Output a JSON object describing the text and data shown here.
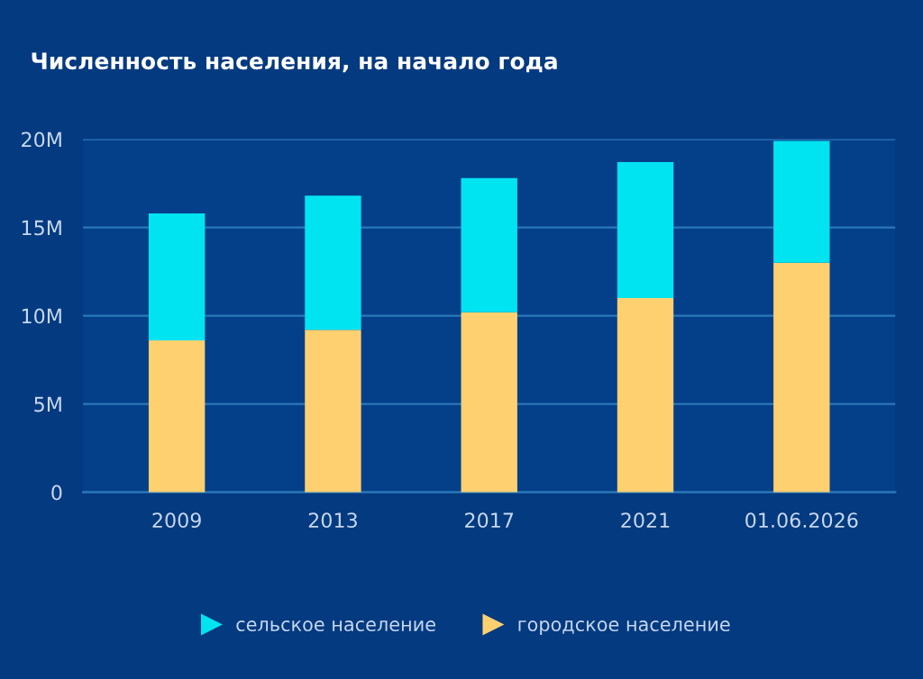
{
  "chart_data": {
    "type": "bar",
    "title": "Численность населения, на начало года",
    "categories": [
      "2009",
      "2013",
      "2017",
      "2021",
      "01.06.2026"
    ],
    "stacked": true,
    "series": [
      {
        "name": "городское население",
        "color": "#ffd070",
        "values": [
          8.6,
          9.2,
          10.2,
          11.0,
          13.0
        ]
      },
      {
        "name": "сельское население",
        "color": "#00e4f2",
        "values": [
          7.2,
          7.6,
          7.6,
          7.7,
          6.9
        ]
      }
    ],
    "ylim": [
      0,
      20
    ],
    "yticks": [
      0,
      {
        "value": 5,
        "label": "5M"
      },
      {
        "value": 10,
        "label": "10M"
      },
      {
        "value": 15,
        "label": "15M"
      },
      {
        "value": 20,
        "label": "20M"
      }
    ],
    "grid": "y",
    "legend": "bottom"
  }
}
